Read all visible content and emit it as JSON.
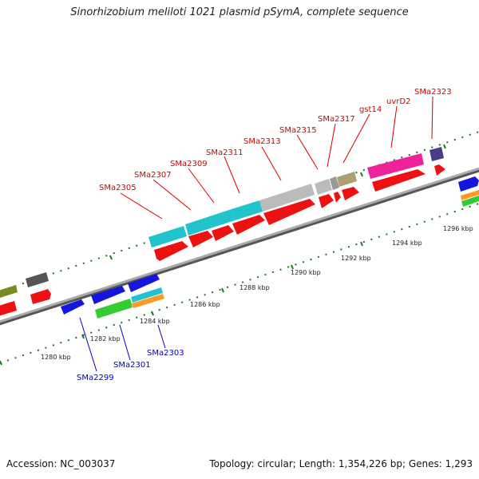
{
  "title": "Sinorhizobium meliloti 1021 plasmid pSymA, complete sequence",
  "footer": {
    "accession": "Accession: NC_003037",
    "topology": "Topology: circular; Length: 1,354,226 bp; Genes: 1,293"
  },
  "colors": {
    "forward_gene": "#ee1111",
    "cyan_gene": "#22c4cc",
    "blue_gene": "#1515dd",
    "green_gene": "#33cc33",
    "magenta_gene": "#ee2299",
    "grey_gene": "#bbbbbb",
    "backbone": "#888888",
    "tick_mark": "#1a7a1a",
    "top_label": "#d40000",
    "bottom_label": "#0000c8"
  },
  "ticks": [
    "1280 kbp",
    "1282 kbp",
    "1284 kbp",
    "1286 kbp",
    "1288 kbp",
    "1290 kbp",
    "1292 kbp",
    "1294 kbp",
    "1296 kbp"
  ],
  "top_genes": [
    "SMa2305",
    "SMa2307",
    "SMa2309",
    "SMa2311",
    "SMa2313",
    "SMa2315",
    "SMa2317",
    "gst14",
    "uvrD2",
    "SMa2323"
  ],
  "bottom_genes": [
    "SMa2299",
    "SMa2301",
    "SMa2303"
  ]
}
